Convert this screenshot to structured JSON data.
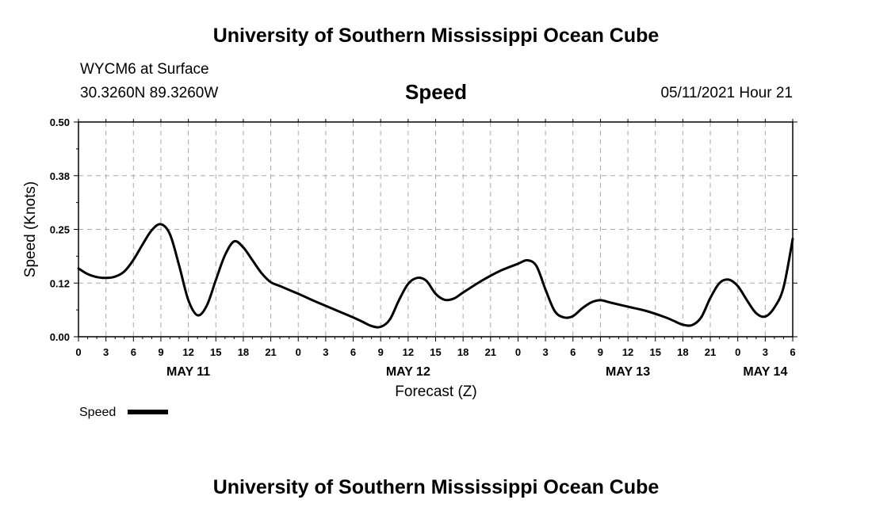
{
  "header": {
    "title_top": "University of Southern Mississippi Ocean Cube",
    "station": "WYCM6 at Surface",
    "coords": "30.3260N  89.3260W",
    "variable": "Speed",
    "datetime": "05/11/2021 Hour 21",
    "title_bottom": "University of Southern Mississippi Ocean Cube"
  },
  "legend": {
    "label": "Speed"
  },
  "chart_data": {
    "type": "line",
    "title": "Speed",
    "xlabel": "Forecast (Z)",
    "ylabel": "Speed (Knots)",
    "ylim": [
      0,
      0.5
    ],
    "xlim_hours": [
      0,
      78
    ],
    "yticks": [
      "0.00",
      "0.12",
      "0.25",
      "0.38",
      "0.50"
    ],
    "xtick_labels": [
      "0",
      "3",
      "6",
      "9",
      "12",
      "15",
      "18",
      "21",
      "0",
      "3",
      "6",
      "9",
      "12",
      "15",
      "18",
      "21",
      "0",
      "3",
      "6",
      "9",
      "12",
      "15",
      "18",
      "21",
      "0",
      "3",
      "6"
    ],
    "date_labels": [
      {
        "label": "MAY 11",
        "hour": 12
      },
      {
        "label": "MAY 12",
        "hour": 36
      },
      {
        "label": "MAY 13",
        "hour": 60
      },
      {
        "label": "MAY 14",
        "hour": 75
      }
    ],
    "grid": true,
    "legend_position": "bottom-left",
    "series": [
      {
        "name": "Speed",
        "color": "#000000",
        "points": [
          [
            0,
            0.159
          ],
          [
            1,
            0.146
          ],
          [
            2,
            0.139
          ],
          [
            3,
            0.137
          ],
          [
            4,
            0.14
          ],
          [
            5,
            0.152
          ],
          [
            6,
            0.179
          ],
          [
            7,
            0.215
          ],
          [
            8,
            0.248
          ],
          [
            9,
            0.262
          ],
          [
            10,
            0.238
          ],
          [
            11,
            0.165
          ],
          [
            12,
            0.085
          ],
          [
            13,
            0.05
          ],
          [
            14,
            0.072
          ],
          [
            15,
            0.132
          ],
          [
            16,
            0.19
          ],
          [
            17,
            0.222
          ],
          [
            18,
            0.208
          ],
          [
            19,
            0.178
          ],
          [
            20,
            0.148
          ],
          [
            21,
            0.127
          ],
          [
            22,
            0.118
          ],
          [
            24,
            0.1
          ],
          [
            26,
            0.081
          ],
          [
            28,
            0.063
          ],
          [
            30,
            0.045
          ],
          [
            31,
            0.035
          ],
          [
            32,
            0.025
          ],
          [
            33,
            0.023
          ],
          [
            34,
            0.04
          ],
          [
            35,
            0.085
          ],
          [
            36,
            0.123
          ],
          [
            37,
            0.137
          ],
          [
            38,
            0.13
          ],
          [
            39,
            0.1
          ],
          [
            40,
            0.086
          ],
          [
            41,
            0.089
          ],
          [
            42,
            0.103
          ],
          [
            44,
            0.13
          ],
          [
            46,
            0.153
          ],
          [
            48,
            0.17
          ],
          [
            49,
            0.178
          ],
          [
            50,
            0.165
          ],
          [
            51,
            0.11
          ],
          [
            52,
            0.06
          ],
          [
            53,
            0.045
          ],
          [
            54,
            0.048
          ],
          [
            55,
            0.066
          ],
          [
            56,
            0.08
          ],
          [
            57,
            0.085
          ],
          [
            58,
            0.08
          ],
          [
            60,
            0.07
          ],
          [
            62,
            0.06
          ],
          [
            64,
            0.046
          ],
          [
            65,
            0.037
          ],
          [
            66,
            0.028
          ],
          [
            67,
            0.027
          ],
          [
            68,
            0.045
          ],
          [
            69,
            0.09
          ],
          [
            70,
            0.125
          ],
          [
            71,
            0.133
          ],
          [
            72,
            0.118
          ],
          [
            73,
            0.085
          ],
          [
            74,
            0.055
          ],
          [
            75,
            0.047
          ],
          [
            76,
            0.068
          ],
          [
            77,
            0.115
          ],
          [
            78,
            0.228
          ]
        ]
      }
    ]
  }
}
